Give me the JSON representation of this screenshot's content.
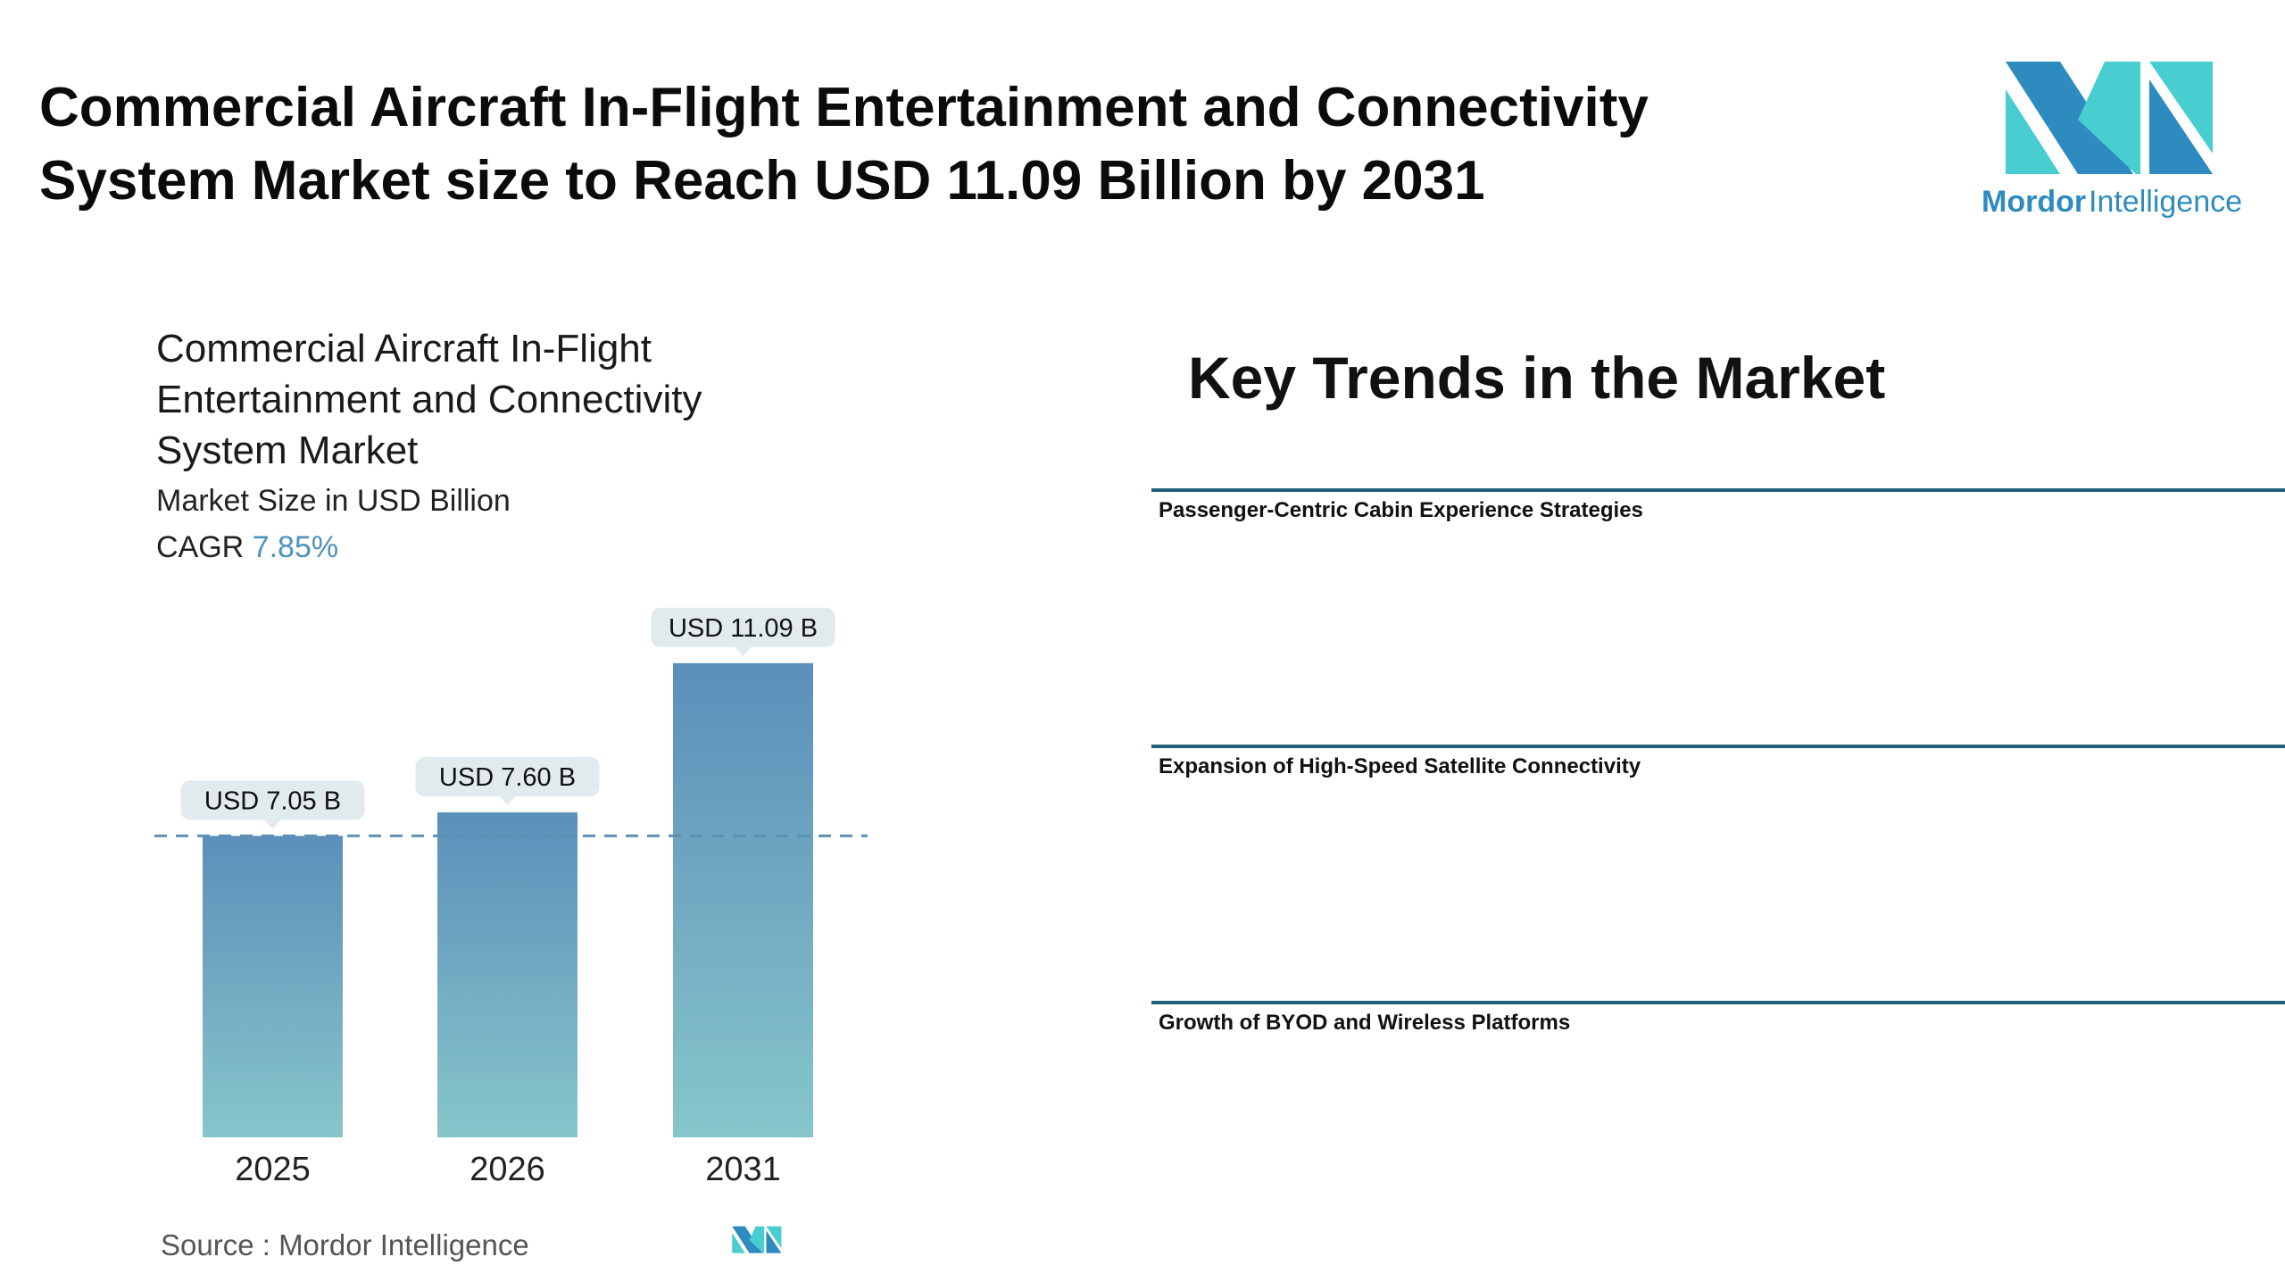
{
  "header": {
    "title_line1": "Commercial Aircraft In-Flight Entertainment and Connectivity",
    "title_line2": "System Market size to Reach USD 11.09 Billion by 2031"
  },
  "logo": {
    "word1": "Mordor",
    "word2": "Intelligence",
    "colors": {
      "dark": "#2e8bbf",
      "light": "#48cdd0"
    }
  },
  "chart_data": {
    "type": "bar",
    "title_lines": [
      "Commercial Aircraft In-Flight",
      "Entertainment and Connectivity",
      "System Market"
    ],
    "subtitle": "Market Size in USD Billion",
    "cagr_label": "CAGR",
    "cagr_value": "7.85%",
    "categories": [
      "2025",
      "2026",
      "2031"
    ],
    "values": [
      7.05,
      7.6,
      11.09
    ],
    "data_labels": [
      "USD 7.05 B",
      "USD 7.60 B",
      "USD 11.09 B"
    ],
    "reference_line": 7.05,
    "colors": {
      "bar_top": "#5b8fba",
      "bar_bottom": "#86c6ca",
      "label_bg": "#e1eaed",
      "dash": "#5d8fb3"
    }
  },
  "trends": {
    "heading": "Key Trends in the Market",
    "items": [
      "Passenger-Centric Cabin Experience Strategies",
      "Expansion of High-Speed Satellite Connectivity",
      "Growth of BYOD and Wireless Platforms"
    ],
    "line_color": "#1f5f7a"
  },
  "source": {
    "text": "Source :  Mordor Intelligence"
  }
}
